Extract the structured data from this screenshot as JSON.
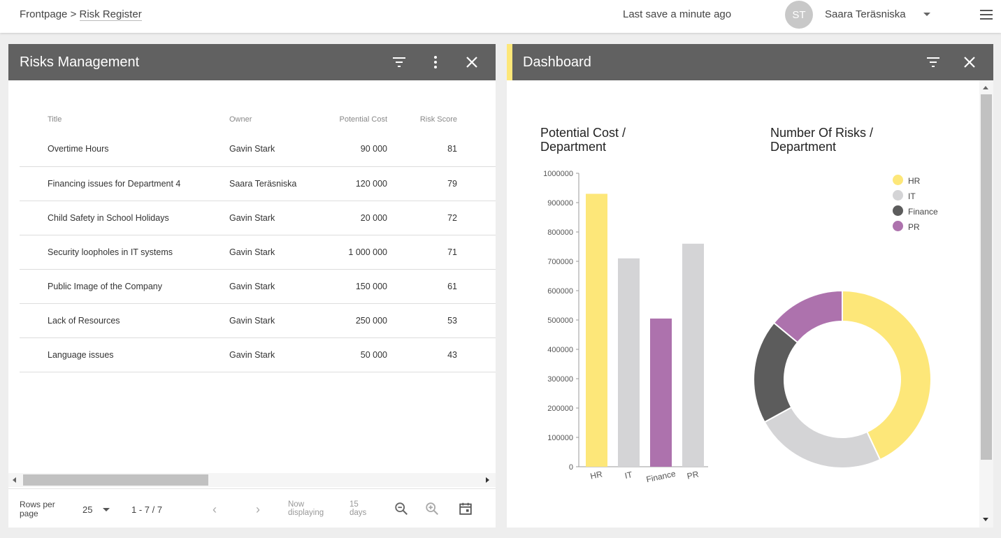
{
  "header": {
    "breadcrumb_root": "Frontpage",
    "breadcrumb_sep": ">",
    "breadcrumb_current": "Risk Register",
    "last_save": "Last save a minute ago",
    "avatar_initials": "ST",
    "user_name": "Saara Teräsniska"
  },
  "risks_panel": {
    "title": "Risks Management",
    "columns": {
      "title": "Title",
      "owner": "Owner",
      "cost": "Potential Cost",
      "score": "Risk Score"
    },
    "rows": [
      {
        "title": "Overtime Hours",
        "owner": "Gavin Stark",
        "cost": "90 000",
        "score": "81"
      },
      {
        "title": "Financing issues for Department 4",
        "owner": "Saara Teräsniska",
        "cost": "120 000",
        "score": "79"
      },
      {
        "title": "Child Safety in School Holidays",
        "owner": "Gavin Stark",
        "cost": "20 000",
        "score": "72"
      },
      {
        "title": "Security loopholes in IT systems",
        "owner": "Gavin Stark",
        "cost": "1 000 000",
        "score": "71"
      },
      {
        "title": "Public Image of the Company",
        "owner": "Gavin Stark",
        "cost": "150 000",
        "score": "61"
      },
      {
        "title": "Lack of Resources",
        "owner": "Gavin Stark",
        "cost": "250 000",
        "score": "53"
      },
      {
        "title": "Language issues",
        "owner": "Gavin Stark",
        "cost": "50 000",
        "score": "43"
      }
    ],
    "footer": {
      "rows_per_page_label": "Rows per page",
      "rows_per_page_value": "25",
      "range": "1 - 7 / 7",
      "now_displaying": "Now displaying",
      "days": "15 days"
    }
  },
  "dashboard_panel": {
    "title": "Dashboard"
  },
  "colors": {
    "HR": "#fde779",
    "IT": "#d4d4d6",
    "Finance": "#5c5c5c",
    "PR": "#ad72ad"
  },
  "chart_data": [
    {
      "type": "bar",
      "title": "Potential Cost / Department",
      "categories": [
        "HR",
        "IT",
        "Finance",
        "PR"
      ],
      "values": [
        930000,
        710000,
        505000,
        760000
      ],
      "bar_colors": [
        "#fde779",
        "#d4d4d6",
        "#ad72ad",
        "#d4d4d6"
      ],
      "yticks": [
        "0",
        "100000",
        "200000",
        "300000",
        "400000",
        "500000",
        "600000",
        "700000",
        "800000",
        "900000",
        "1000000"
      ],
      "ylim": [
        0,
        1000000
      ],
      "xlabel": "",
      "ylabel": "",
      "grid": false
    },
    {
      "type": "pie",
      "donut": true,
      "title": "Number Of Risks / Department",
      "labels": [
        "HR",
        "IT",
        "Finance",
        "PR"
      ],
      "values": [
        43,
        24,
        19,
        14
      ],
      "legend": "top-right"
    }
  ]
}
